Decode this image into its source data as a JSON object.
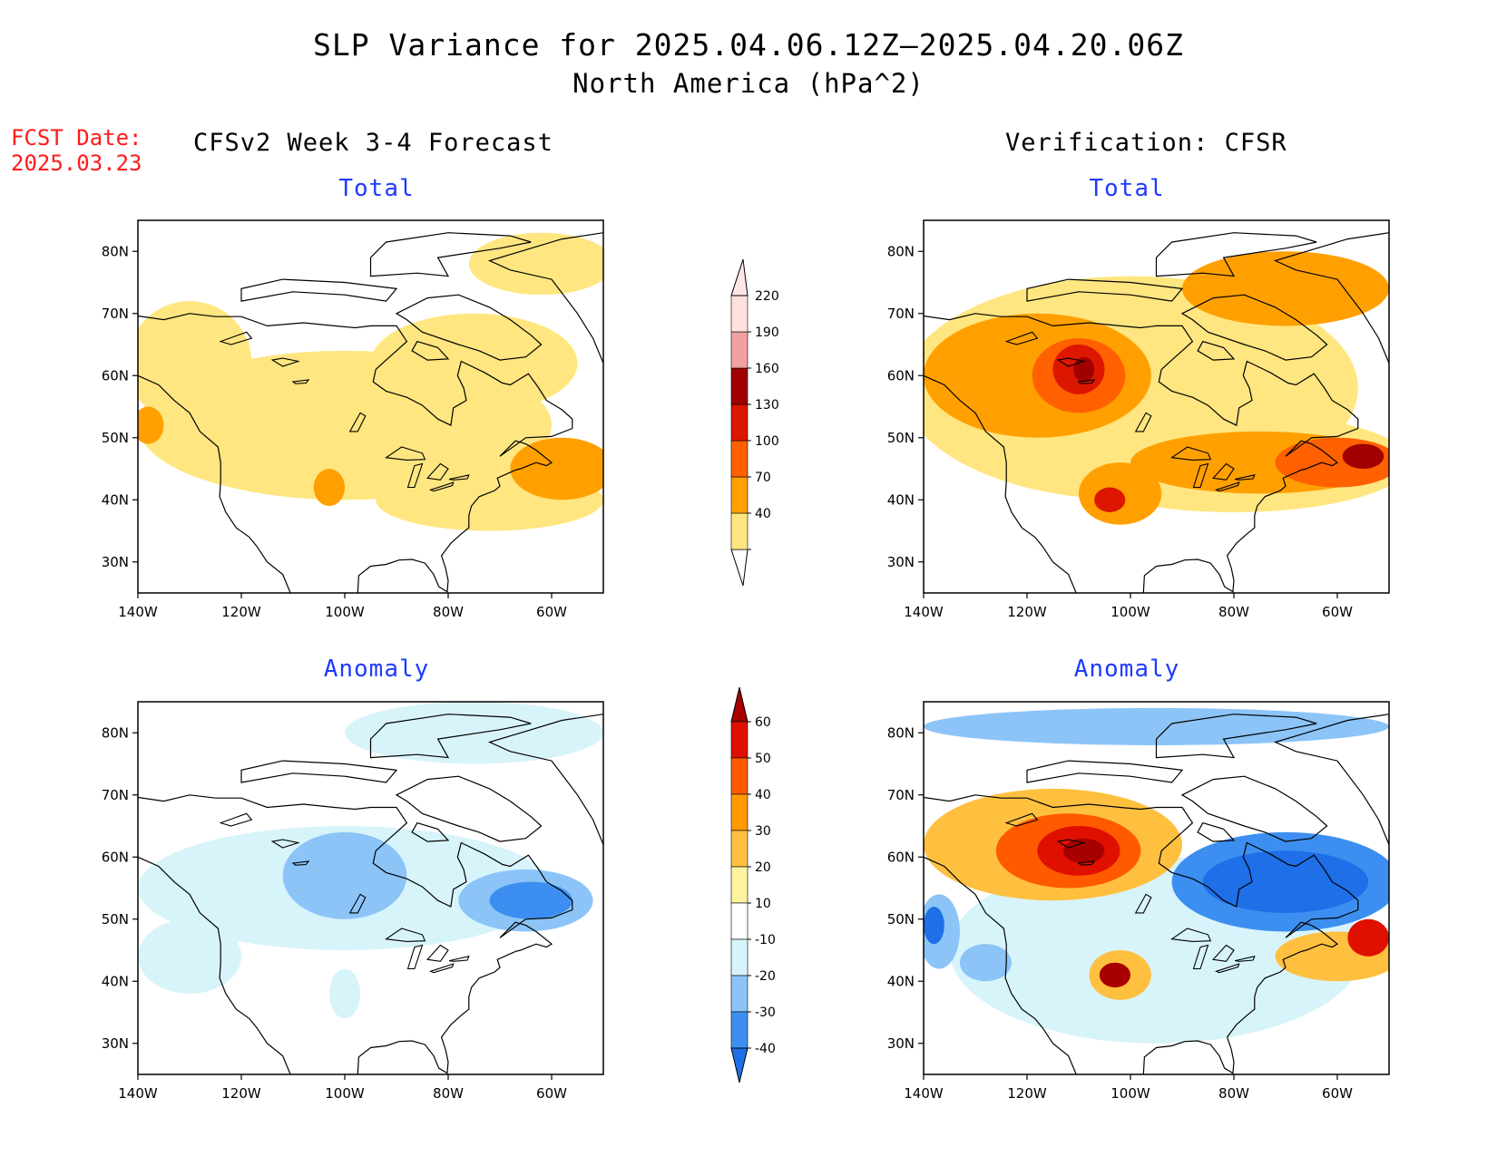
{
  "title_line1": "SLP Variance for 2025.04.06.12Z–2025.04.20.06Z",
  "title_line2": "North America (hPa^2)",
  "fcst_date": {
    "label": "FCST Date:",
    "value": "2025.03.23"
  },
  "left_column_title": "CFSv2 Week 3-4 Forecast",
  "right_column_title": "Verification: CFSR",
  "panels": [
    {
      "id": "forecast-total",
      "title": "Total"
    },
    {
      "id": "verification-total",
      "title": "Total"
    },
    {
      "id": "forecast-anomaly",
      "title": "Anomaly"
    },
    {
      "id": "verification-anomaly",
      "title": "Anomaly"
    }
  ],
  "axes": {
    "lon_ticks": [
      "140W",
      "120W",
      "100W",
      "80W",
      "60W"
    ],
    "lat_ticks": [
      "80N",
      "70N",
      "60N",
      "50N",
      "40N",
      "30N"
    ],
    "lon_range": [
      -140,
      -50
    ],
    "lat_range": [
      25,
      85
    ]
  },
  "colorbar_total": {
    "labels": [
      "40",
      "70",
      "100",
      "130",
      "160",
      "190",
      "220"
    ],
    "colors": [
      "#ffe680",
      "#ffa000",
      "#ff6000",
      "#dd1600",
      "#a00000",
      "#f2a0a0",
      "#ffe0e0"
    ]
  },
  "colorbar_anomaly": {
    "labels": [
      "-40",
      "-30",
      "-20",
      "-10",
      "10",
      "20",
      "30",
      "40",
      "50",
      "60"
    ],
    "colors": [
      "#1e6fe8",
      "#3c8ff0",
      "#8cc4f8",
      "#d8f4fb",
      "#ffffff",
      "#fff3a0",
      "#ffc040",
      "#ff9a00",
      "#ff5a00",
      "#e01000",
      "#a80000"
    ]
  },
  "fields": {
    "forecast-total": [
      {
        "level": 1,
        "lon": -100,
        "lat": 52,
        "rx": 40,
        "ry": 12
      },
      {
        "level": 1,
        "lon": -130,
        "lat": 62,
        "rx": 12,
        "ry": 10
      },
      {
        "level": 1,
        "lon": -75,
        "lat": 62,
        "rx": 20,
        "ry": 8
      },
      {
        "level": 1,
        "lon": -72,
        "lat": 40,
        "rx": 22,
        "ry": 5
      },
      {
        "level": 1,
        "lon": -62,
        "lat": 78,
        "rx": 14,
        "ry": 5
      },
      {
        "level": 2,
        "lon": -58,
        "lat": 45,
        "rx": 10,
        "ry": 5
      },
      {
        "level": 2,
        "lon": -138,
        "lat": 52,
        "rx": 3,
        "ry": 3
      },
      {
        "level": 2,
        "lon": -103,
        "lat": 42,
        "rx": 3,
        "ry": 3
      }
    ],
    "verification-total": [
      {
        "level": 1,
        "lon": -100,
        "lat": 58,
        "rx": 44,
        "ry": 18
      },
      {
        "level": 1,
        "lon": -80,
        "lat": 46,
        "rx": 34,
        "ry": 8
      },
      {
        "level": 2,
        "lon": -118,
        "lat": 60,
        "rx": 22,
        "ry": 10
      },
      {
        "level": 2,
        "lon": -70,
        "lat": 74,
        "rx": 20,
        "ry": 6
      },
      {
        "level": 2,
        "lon": -75,
        "lat": 46,
        "rx": 25,
        "ry": 5
      },
      {
        "level": 2,
        "lon": -102,
        "lat": 41,
        "rx": 8,
        "ry": 5
      },
      {
        "level": 3,
        "lon": -110,
        "lat": 60,
        "rx": 9,
        "ry": 6
      },
      {
        "level": 3,
        "lon": -60,
        "lat": 46,
        "rx": 12,
        "ry": 4
      },
      {
        "level": 4,
        "lon": -110,
        "lat": 61,
        "rx": 5,
        "ry": 4
      },
      {
        "level": 4,
        "lon": -104,
        "lat": 40,
        "rx": 3,
        "ry": 2
      },
      {
        "level": 5,
        "lon": -109,
        "lat": 61,
        "rx": 2,
        "ry": 2
      },
      {
        "level": 5,
        "lon": -55,
        "lat": 47,
        "rx": 4,
        "ry": 2
      }
    ],
    "forecast-anomaly": [
      {
        "level": -1,
        "lon": -100,
        "lat": 55,
        "rx": 40,
        "ry": 10
      },
      {
        "level": -1,
        "lon": -130,
        "lat": 44,
        "rx": 10,
        "ry": 6
      },
      {
        "level": -1,
        "lon": -100,
        "lat": 38,
        "rx": 3,
        "ry": 4
      },
      {
        "level": -1,
        "lon": -75,
        "lat": 80,
        "rx": 25,
        "ry": 5
      },
      {
        "level": -2,
        "lon": -100,
        "lat": 57,
        "rx": 12,
        "ry": 7
      },
      {
        "level": -2,
        "lon": -65,
        "lat": 53,
        "rx": 13,
        "ry": 5
      },
      {
        "level": -3,
        "lon": -64,
        "lat": 53,
        "rx": 8,
        "ry": 3
      }
    ],
    "verification-anomaly": [
      {
        "level": -1,
        "lon": -95,
        "lat": 45,
        "rx": 40,
        "ry": 15
      },
      {
        "level": -2,
        "lon": -95,
        "lat": 81,
        "rx": 45,
        "ry": 3
      },
      {
        "level": -2,
        "lon": -137,
        "lat": 48,
        "rx": 4,
        "ry": 6
      },
      {
        "level": -2,
        "lon": -128,
        "lat": 43,
        "rx": 5,
        "ry": 3
      },
      {
        "level": -3,
        "lon": -70,
        "lat": 56,
        "rx": 22,
        "ry": 8
      },
      {
        "level": -4,
        "lon": -70,
        "lat": 56,
        "rx": 16,
        "ry": 5
      },
      {
        "level": -4,
        "lon": -138,
        "lat": 49,
        "rx": 2,
        "ry": 3
      },
      {
        "level": 2,
        "lon": -115,
        "lat": 62,
        "rx": 25,
        "ry": 9
      },
      {
        "level": 2,
        "lon": -102,
        "lat": 41,
        "rx": 6,
        "ry": 4
      },
      {
        "level": 2,
        "lon": -60,
        "lat": 44,
        "rx": 12,
        "ry": 4
      },
      {
        "level": 3,
        "lon": -112,
        "lat": 61,
        "rx": 14,
        "ry": 6
      },
      {
        "level": 4,
        "lon": -110,
        "lat": 61,
        "rx": 8,
        "ry": 4
      },
      {
        "level": 4,
        "lon": -54,
        "lat": 47,
        "rx": 4,
        "ry": 3
      },
      {
        "level": 5,
        "lon": -109,
        "lat": 61,
        "rx": 4,
        "ry": 2
      },
      {
        "level": 5,
        "lon": -103,
        "lat": 41,
        "rx": 3,
        "ry": 2
      }
    ]
  }
}
